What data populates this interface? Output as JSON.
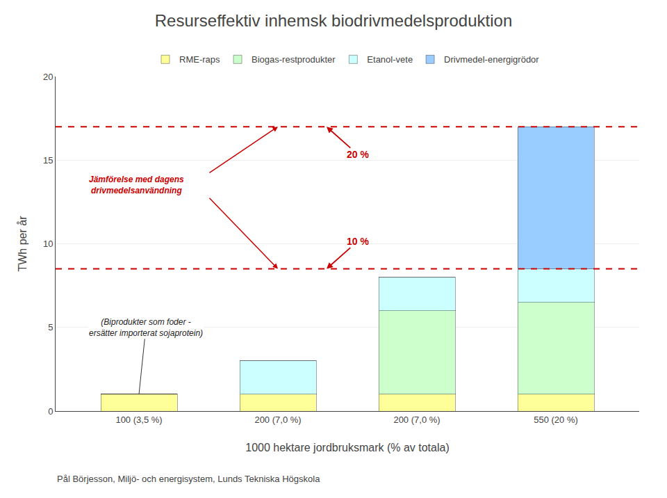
{
  "chart_data": {
    "type": "bar",
    "stacked": true,
    "title": "Resurseffektiv inhemsk biodrivmedelsproduktion",
    "xlabel": "1000 hektare jordbruksmark (% av totala)",
    "ylabel": "TWh per år",
    "categories": [
      "100 (3,5 %)",
      "200 (7,0 %)",
      "200 (7,0 %)",
      "550 (20 %)"
    ],
    "series": [
      {
        "name": "RME-raps",
        "color": "#FFFF99",
        "values": [
          1.0,
          1.0,
          1.0,
          1.0
        ]
      },
      {
        "name": "Biogas-restprodukter",
        "color": "#CCFFCC",
        "values": [
          0.0,
          0.0,
          5.0,
          5.5
        ]
      },
      {
        "name": "Etanol-vete",
        "color": "#CCFFFF",
        "values": [
          0.0,
          2.0,
          2.0,
          2.0
        ]
      },
      {
        "name": "Drivmedel-energigrödor",
        "color": "#99CCFF",
        "values": [
          0.0,
          0.0,
          0.0,
          8.5
        ]
      }
    ],
    "ylim": [
      0,
      20
    ],
    "yticks": [
      0,
      5,
      10,
      15,
      20
    ],
    "grid": true,
    "legend": "top",
    "reference_lines": [
      {
        "value": 8.5,
        "label": "10 %",
        "color": "#CC0000",
        "line_style": "dashed"
      },
      {
        "value": 17.0,
        "label": "20 %",
        "color": "#CC0000",
        "line_style": "dashed"
      }
    ],
    "annotations": [
      {
        "text": "Jämförelse med dagens\ndrivmedelsanvändning",
        "color": "#CC0000"
      },
      {
        "text": "(Biprodukter som foder -\nersätter importerat sojaprotein)"
      }
    ],
    "footer": "Pål Börjesson, Miljö- och energisystem, Lunds Tekniska Högskola"
  }
}
